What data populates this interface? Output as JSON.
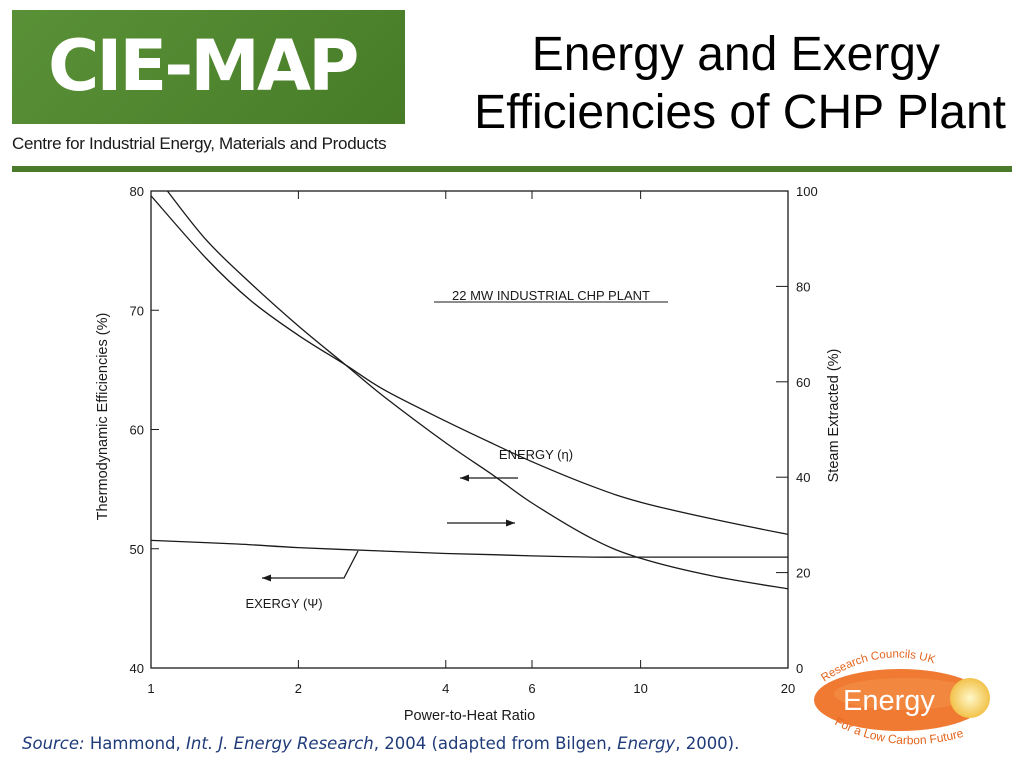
{
  "header": {
    "logo_text": "CIE-MAP",
    "logo_subtitle": "Centre for Industrial Energy, Materials and Products",
    "title_line1": "Energy and Exergy",
    "title_line2": "Efficiencies of CHP Plant"
  },
  "chart_data": {
    "type": "line",
    "x_scale": "log",
    "xlabel": "Power-to-Heat  Ratio",
    "ylabel_left": "Thermodynamic  Efficiencies  (%)",
    "ylabel_right": "Steam  Extracted  (%)",
    "xlim": [
      1,
      20
    ],
    "ylim_left": [
      40,
      80
    ],
    "ylim_right": [
      0,
      100
    ],
    "x_ticks": [
      1,
      2,
      4,
      6,
      10,
      20
    ],
    "y_ticks_left": [
      40,
      50,
      60,
      70,
      80
    ],
    "y_ticks_right": [
      0,
      20,
      40,
      60,
      80,
      100
    ],
    "annotation_plant": "22 MW  INDUSTRIAL  CHP  PLANT",
    "label_energy": "ENERGY (η)",
    "label_exergy": "EXERGY (Ψ)",
    "series": [
      {
        "name": "Energy efficiency",
        "axis": "left",
        "x": [
          1,
          1.3,
          1.6,
          2,
          2.5,
          3,
          4,
          5,
          6,
          8,
          10,
          14,
          20
        ],
        "y": [
          79.6,
          74.3,
          70.8,
          67.9,
          65.4,
          63.3,
          60.7,
          58.8,
          57.3,
          55.2,
          53.9,
          52.5,
          51.2
        ]
      },
      {
        "name": "Exergy efficiency",
        "axis": "left",
        "x": [
          1,
          1.5,
          2,
          3,
          4,
          5,
          6,
          8,
          10,
          15,
          20
        ],
        "y": [
          50.7,
          50.4,
          50.1,
          49.8,
          49.6,
          49.5,
          49.4,
          49.3,
          49.3,
          49.3,
          49.3
        ]
      },
      {
        "name": "Steam extracted",
        "axis": "right",
        "x": [
          1.08,
          1.3,
          1.6,
          2,
          2.5,
          3,
          4,
          5,
          6,
          8,
          10,
          14,
          20
        ],
        "y": [
          100,
          89.6,
          80.6,
          71.7,
          63.5,
          56.8,
          47.2,
          40.4,
          34.6,
          27.0,
          23.0,
          19.3,
          16.6
        ]
      }
    ]
  },
  "source": {
    "label": "Source:",
    "author": " Hammond, ",
    "journal": "Int. J. Energy Research",
    "details": ", 2004 (adapted from  Bilgen, ",
    "journal2": "Energy",
    "year_end": ", 2000)."
  },
  "rc_logo": {
    "top_text": "Research Councils UK",
    "center_text": "Energy",
    "bottom_text": "For a Low Carbon Future"
  },
  "colors": {
    "brand_green": "#4f8a2b",
    "rule_green": "#4a7a2a",
    "source_blue": "#1f3b7a",
    "rc_orange": "#f07a32"
  }
}
